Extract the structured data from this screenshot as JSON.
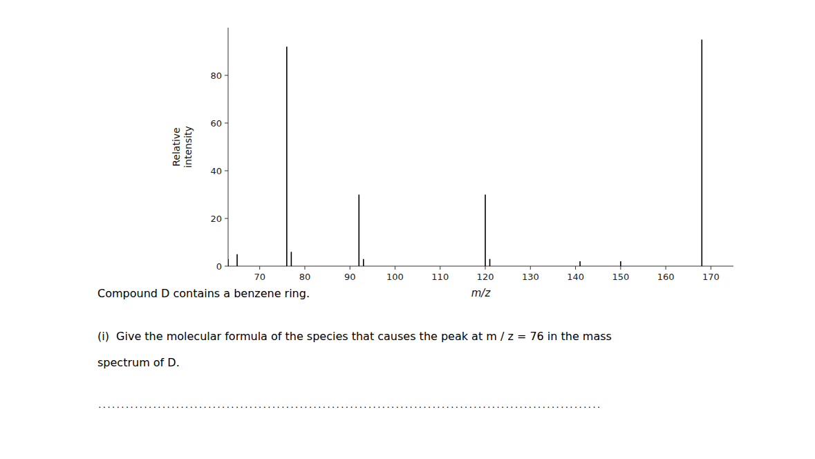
{
  "chart_data": {
    "type": "stem",
    "x": [
      63,
      65,
      76,
      77,
      92,
      93,
      120,
      121,
      141,
      150,
      168
    ],
    "values": [
      3,
      5,
      92,
      6,
      30,
      3,
      30,
      3,
      2,
      2,
      95
    ],
    "color": "black",
    "xlabel": "m/z",
    "ylabel": "Relative\nintensity",
    "xlim": [
      63,
      175
    ],
    "ylim": [
      0,
      100
    ],
    "xticks": [
      70,
      80,
      90,
      100,
      110,
      120,
      130,
      140,
      150,
      160,
      170
    ],
    "yticks": [
      0,
      20,
      40,
      60,
      80
    ],
    "annotations": [
      "Compound D contains a benzene ring.",
      "(i)  Give the molecular formula of the species that causes the peak at m / z = 76 in the mass",
      "spectrum of D.",
      ".............................................................................................................."
    ]
  }
}
